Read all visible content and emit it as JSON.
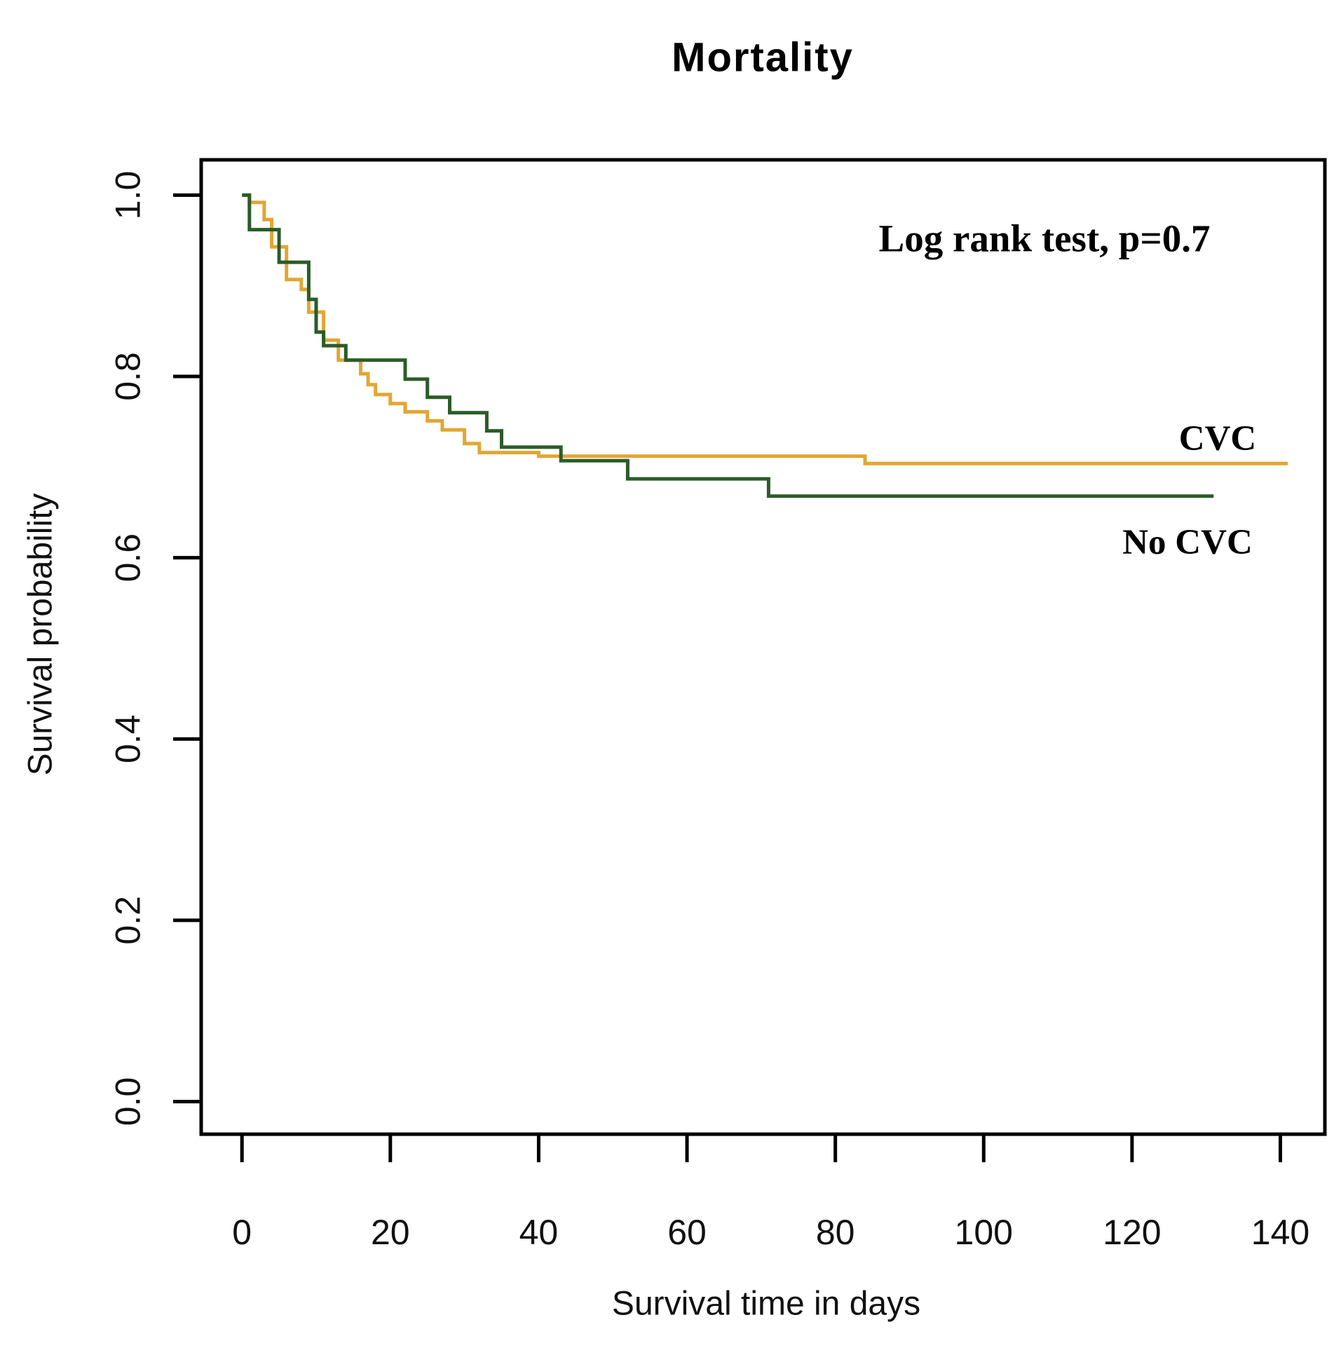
{
  "page": {
    "background": "#ffffff",
    "text_color": "#000000"
  },
  "chart_data": {
    "type": "line",
    "subtype": "kaplan-meier-step-curves",
    "title": "Mortality",
    "xlabel": "Survival time in days",
    "ylabel": "Survival probability",
    "annotation": "Log rank test, p=0.7",
    "x_ticks": [
      0,
      20,
      40,
      60,
      80,
      100,
      120,
      140
    ],
    "y_ticks": [
      "0.0",
      "0.2",
      "0.4",
      "0.6",
      "0.8",
      "1.0"
    ],
    "xlim": [
      -5.5,
      146
    ],
    "ylim": [
      -0.036,
      1.039
    ],
    "grid": false,
    "legend_position": "labels-at-right-line-ends",
    "axis_color": "#000000",
    "series": [
      {
        "name": "CVC",
        "color": "#E2A633",
        "steps": [
          [
            0,
            1.0
          ],
          [
            1,
            0.992
          ],
          [
            3,
            0.973
          ],
          [
            4,
            0.943
          ],
          [
            6,
            0.907
          ],
          [
            8,
            0.896
          ],
          [
            9,
            0.871
          ],
          [
            11,
            0.84
          ],
          [
            13,
            0.818
          ],
          [
            16,
            0.803
          ],
          [
            17,
            0.791
          ],
          [
            18,
            0.78
          ],
          [
            20,
            0.77
          ],
          [
            22,
            0.761
          ],
          [
            25,
            0.751
          ],
          [
            27,
            0.741
          ],
          [
            30,
            0.726
          ],
          [
            32,
            0.716
          ],
          [
            40,
            0.712
          ],
          [
            84,
            0.704
          ],
          [
            141,
            0.704
          ]
        ]
      },
      {
        "name": "No CVC",
        "color": "#2B5C28",
        "steps": [
          [
            0,
            1.0
          ],
          [
            1,
            0.962
          ],
          [
            5,
            0.926
          ],
          [
            9,
            0.885
          ],
          [
            10,
            0.849
          ],
          [
            11,
            0.834
          ],
          [
            14,
            0.818
          ],
          [
            22,
            0.797
          ],
          [
            25,
            0.777
          ],
          [
            28,
            0.76
          ],
          [
            33,
            0.74
          ],
          [
            35,
            0.722
          ],
          [
            43,
            0.707
          ],
          [
            52,
            0.687
          ],
          [
            71,
            0.668
          ],
          [
            131,
            0.668
          ]
        ]
      }
    ]
  }
}
